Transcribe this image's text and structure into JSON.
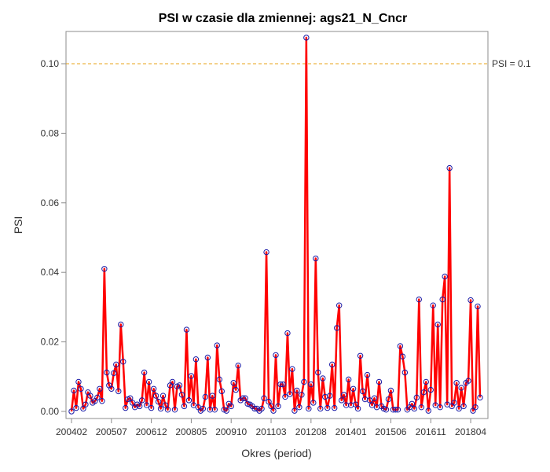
{
  "chart_data": {
    "type": "line",
    "title": "PSI w czasie dla zmiennej: ags21_N_Cncr",
    "xlabel": "Okres (period)",
    "ylabel": "PSI",
    "ylim": [
      0,
      0.109
    ],
    "yticks": [
      0.0,
      0.02,
      0.04,
      0.06,
      0.08,
      0.1
    ],
    "ytick_labels": [
      "0.00",
      "0.02",
      "0.04",
      "0.06",
      "0.08",
      "0.10"
    ],
    "xtick_labels": [
      "200402",
      "200507",
      "200612",
      "200805",
      "200910",
      "201103",
      "201208",
      "201401",
      "201506",
      "201611",
      "201804"
    ],
    "xtick_index_step": 17,
    "grid": false,
    "reference_line": {
      "y": 0.1,
      "label": "PSI = 0.1",
      "color": "#e8a317"
    },
    "series": [
      {
        "line_color": "#ff0000",
        "marker_color": "#1a1aa6",
        "values": [
          0.0,
          0.006,
          0.001,
          0.0085,
          0.0065,
          0.0008,
          0.002,
          0.0055,
          0.0045,
          0.0025,
          0.003,
          0.004,
          0.0065,
          0.003,
          0.041,
          0.0112,
          0.0075,
          0.0065,
          0.011,
          0.0135,
          0.0058,
          0.025,
          0.0143,
          0.001,
          0.0035,
          0.0038,
          0.0025,
          0.0012,
          0.002,
          0.0015,
          0.0032,
          0.0112,
          0.0018,
          0.0085,
          0.001,
          0.0065,
          0.0045,
          0.0028,
          0.0008,
          0.0045,
          0.0018,
          0.0005,
          0.0075,
          0.0085,
          0.0005,
          0.0072,
          0.0075,
          0.0048,
          0.0015,
          0.0235,
          0.0032,
          0.0102,
          0.0018,
          0.015,
          0.0012,
          0.0002,
          0.0008,
          0.0042,
          0.0155,
          0.0005,
          0.0045,
          0.0005,
          0.019,
          0.0092,
          0.0058,
          0.0005,
          0.0002,
          0.0022,
          0.0015,
          0.0082,
          0.0062,
          0.0132,
          0.0032,
          0.0038,
          0.0038,
          0.0022,
          0.002,
          0.0015,
          0.0008,
          0.0008,
          0.0002,
          0.0008,
          0.0038,
          0.0458,
          0.0028,
          0.0015,
          0.0002,
          0.0162,
          0.0015,
          0.0078,
          0.0078,
          0.0042,
          0.0225,
          0.005,
          0.0122,
          0.0002,
          0.006,
          0.0012,
          0.0048,
          0.0085,
          0.1075,
          0.0008,
          0.0078,
          0.0025,
          0.044,
          0.0112,
          0.0008,
          0.0095,
          0.0042,
          0.001,
          0.0045,
          0.0135,
          0.001,
          0.024,
          0.0305,
          0.0032,
          0.0048,
          0.0018,
          0.0092,
          0.0018,
          0.0065,
          0.002,
          0.0008,
          0.016,
          0.0058,
          0.0035,
          0.0105,
          0.0032,
          0.0018,
          0.0038,
          0.0012,
          0.0085,
          0.0015,
          0.0008,
          0.0005,
          0.0035,
          0.006,
          0.0005,
          0.0005,
          0.0005,
          0.0188,
          0.0158,
          0.0112,
          0.0005,
          0.0012,
          0.0022,
          0.0008,
          0.004,
          0.0322,
          0.0012,
          0.0055,
          0.0085,
          0.0002,
          0.0062,
          0.0305,
          0.0018,
          0.025,
          0.0012,
          0.0322,
          0.0388,
          0.002,
          0.07,
          0.0015,
          0.0025,
          0.0082,
          0.0008,
          0.0068,
          0.0015,
          0.0082,
          0.0088,
          0.032,
          0.0002,
          0.0012,
          0.0302,
          0.004
        ]
      }
    ]
  }
}
